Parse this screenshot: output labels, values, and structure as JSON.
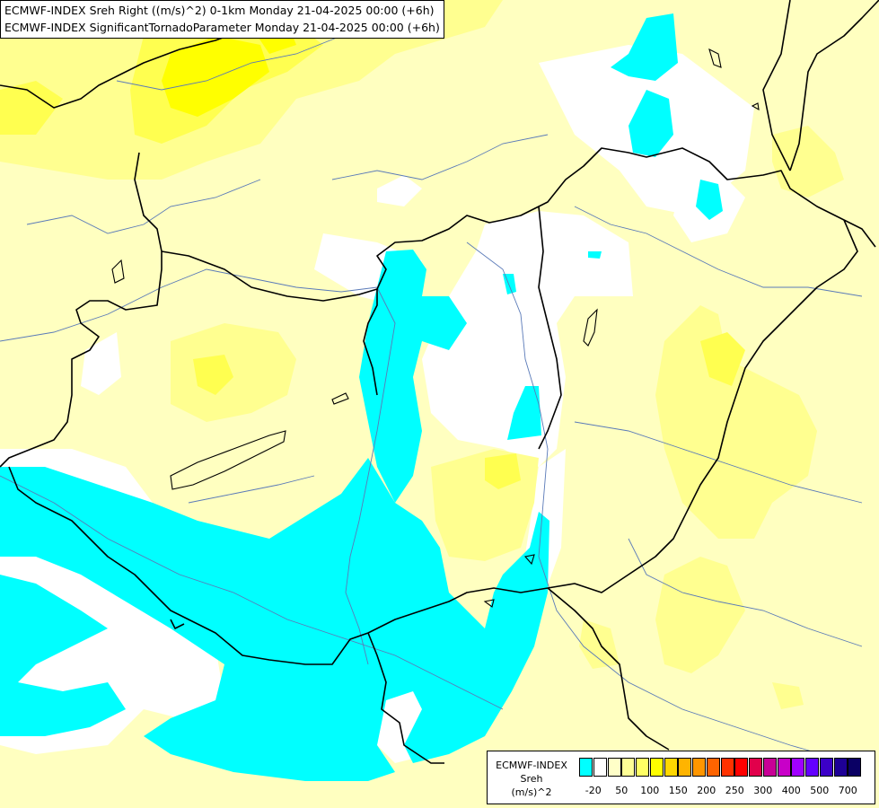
{
  "header": {
    "line1": "ECMWF-INDEX Sreh Right ((m/s)^2) 0-1km Monday 21-04-2025 00:00 (+6h)",
    "line2": "ECMWF-INDEX SignificantTornadoParameter Monday 21-04-2025 00:00 (+6h)"
  },
  "legend": {
    "title": "ECMWF-INDEX",
    "subtitle": "Sreh",
    "unit": "(m/s)^2",
    "ticks": [
      "-20",
      "50",
      "100",
      "150",
      "200",
      "250",
      "300",
      "400",
      "500",
      "700"
    ],
    "colors": [
      "#00ffff",
      "#ffffff",
      "#ffffc8",
      "#ffff96",
      "#ffff64",
      "#ffff00",
      "#ffd700",
      "#ffb400",
      "#ff9600",
      "#ff6400",
      "#ff3200",
      "#ff0000",
      "#e1004b",
      "#c80096",
      "#c800c8",
      "#a000ff",
      "#6400ff",
      "#3c00c8",
      "#1e0096",
      "#0a0064"
    ]
  },
  "map": {
    "field_colors": {
      "background": "#ffffc0",
      "white": "#ffffff",
      "cyan": "#00ffff",
      "yellow_light": "#ffff90",
      "yellow": "#ffff50",
      "yellow_strong": "#ffff00"
    }
  }
}
